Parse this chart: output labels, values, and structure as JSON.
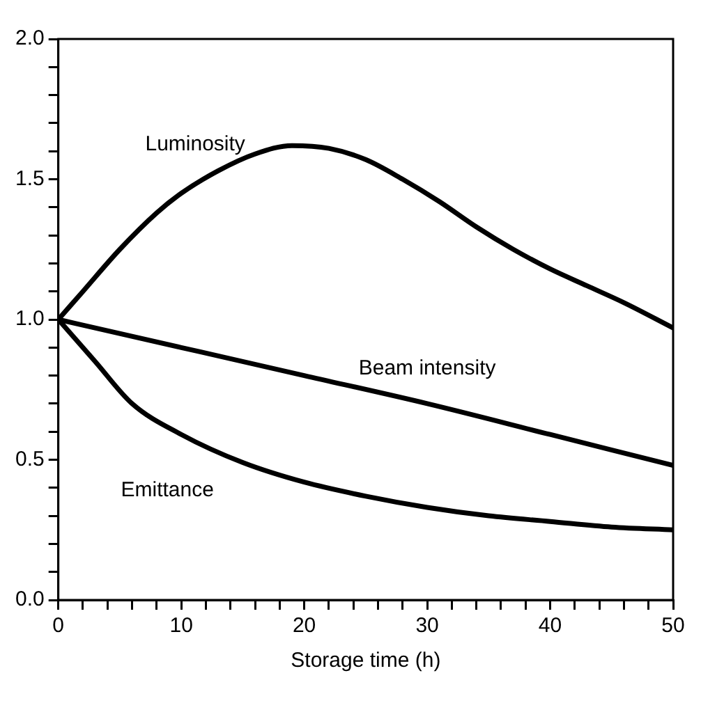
{
  "chart_data": {
    "type": "line",
    "xlabel": "Storage time (h)",
    "xlim": [
      0,
      50
    ],
    "xticks": [
      0,
      {
        "value": 2,
        "label": null
      },
      {
        "value": 4,
        "label": null
      },
      {
        "value": 6,
        "label": null
      },
      {
        "value": 8,
        "label": null
      },
      10,
      {
        "value": 12,
        "label": null
      },
      {
        "value": 14,
        "label": null
      },
      {
        "value": 16,
        "label": null
      },
      {
        "value": 18,
        "label": null
      },
      20,
      {
        "value": 22,
        "label": null
      },
      {
        "value": 24,
        "label": null
      },
      {
        "value": 26,
        "label": null
      },
      {
        "value": 28,
        "label": null
      },
      30,
      {
        "value": 32,
        "label": null
      },
      {
        "value": 34,
        "label": null
      },
      {
        "value": 36,
        "label": null
      },
      {
        "value": 38,
        "label": null
      },
      40,
      {
        "value": 42,
        "label": null
      },
      {
        "value": 44,
        "label": null
      },
      {
        "value": 46,
        "label": null
      },
      {
        "value": 48,
        "label": null
      },
      50
    ],
    "ylim": [
      0,
      2
    ],
    "yticks": [
      {
        "value": 0,
        "label": "0.0"
      },
      {
        "value": 0.1,
        "label": null
      },
      {
        "value": 0.2,
        "label": null
      },
      {
        "value": 0.3,
        "label": null
      },
      {
        "value": 0.4,
        "label": null
      },
      0.5,
      {
        "value": 0.6,
        "label": null
      },
      {
        "value": 0.7,
        "label": null
      },
      {
        "value": 0.8,
        "label": null
      },
      {
        "value": 0.9,
        "label": null
      },
      {
        "value": 1,
        "label": "1.0"
      },
      {
        "value": 1.1,
        "label": null
      },
      {
        "value": 1.2,
        "label": null
      },
      {
        "value": 1.3,
        "label": null
      },
      {
        "value": 1.4,
        "label": null
      },
      1.5,
      {
        "value": 1.6,
        "label": null
      },
      {
        "value": 1.7,
        "label": null
      },
      {
        "value": 1.8,
        "label": null
      },
      {
        "value": 1.9,
        "label": null
      },
      {
        "value": 2,
        "label": "2.0"
      }
    ],
    "grid": false,
    "legend": false,
    "marker": "none",
    "line_style": "solid",
    "series": [
      {
        "name": "Luminosity",
        "color": "#000000",
        "x": [
          0,
          2,
          5,
          8,
          10,
          13,
          16,
          19,
          22,
          25,
          28,
          31,
          34,
          37,
          40,
          43,
          46,
          50
        ],
        "values": [
          1.0,
          1.1,
          1.25,
          1.38,
          1.45,
          1.53,
          1.59,
          1.62,
          1.61,
          1.57,
          1.5,
          1.42,
          1.33,
          1.25,
          1.18,
          1.12,
          1.06,
          0.97
        ]
      },
      {
        "name": "Beam intensity",
        "color": "#000000",
        "x": [
          0,
          10,
          20,
          30,
          40,
          50
        ],
        "values": [
          1.0,
          0.9,
          0.8,
          0.7,
          0.59,
          0.48
        ]
      },
      {
        "name": "Emittance",
        "color": "#000000",
        "x": [
          0,
          3,
          6,
          10,
          15,
          20,
          25,
          30,
          35,
          40,
          45,
          50
        ],
        "values": [
          1.0,
          0.85,
          0.7,
          0.59,
          0.49,
          0.42,
          0.37,
          0.33,
          0.3,
          0.28,
          0.26,
          0.25
        ]
      }
    ]
  }
}
